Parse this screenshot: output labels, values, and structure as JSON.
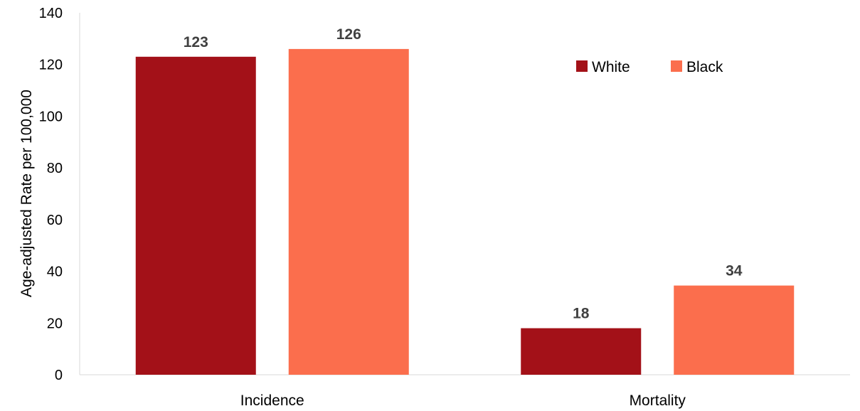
{
  "chart_data": {
    "type": "bar",
    "title": "",
    "xlabel": "",
    "ylabel": "Age-adjusted Rate per 100,000",
    "categories": [
      "Incidence",
      "Mortality"
    ],
    "series": [
      {
        "name": "White",
        "color": "#a31118",
        "values": [
          123,
          18
        ],
        "labels": [
          "123",
          "18"
        ]
      },
      {
        "name": "Black",
        "color": "#fb6e4d",
        "values": [
          126,
          34.5
        ],
        "labels": [
          "126",
          "34"
        ]
      }
    ],
    "ylim": [
      0,
      140
    ],
    "yticks": [
      0,
      20,
      40,
      60,
      80,
      100,
      120,
      140
    ],
    "grid": false,
    "legend_position": "top-right"
  }
}
